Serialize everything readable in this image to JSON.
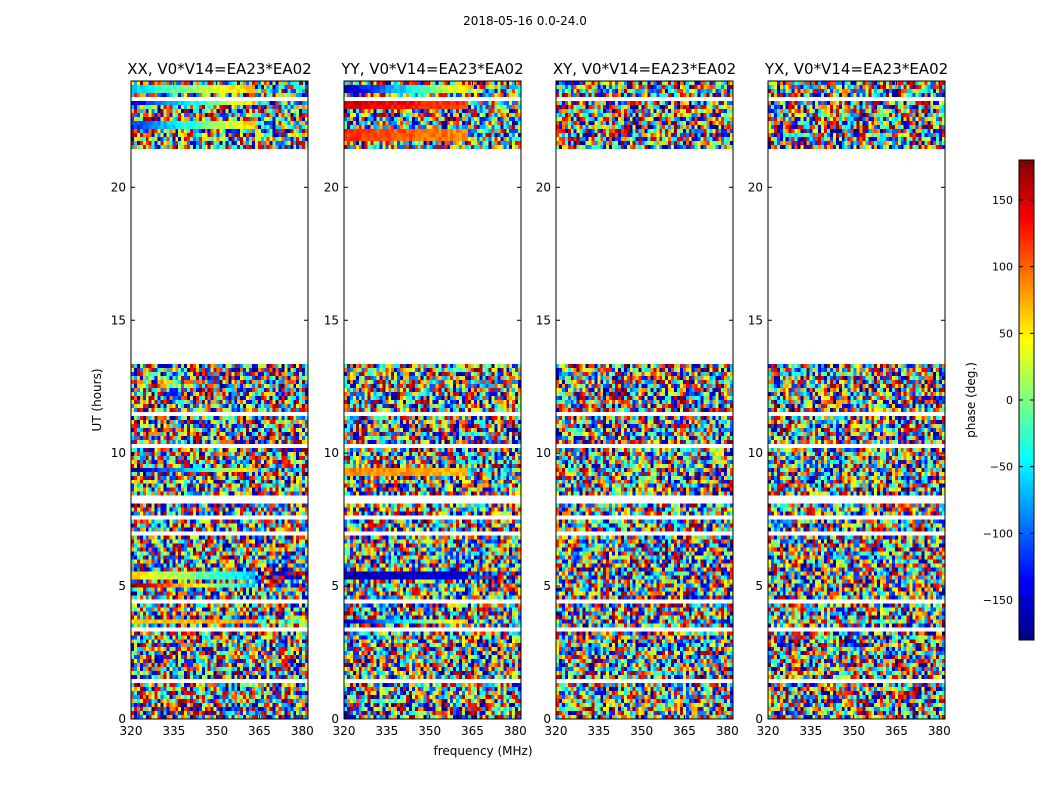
{
  "chart_data": {
    "type": "heatmap",
    "suptitle": "2018-05-16 0.0-24.0",
    "xlabel": "frequency (MHz)",
    "ylabel": "UT (hours)",
    "colorbar": {
      "label": "phase (deg.)",
      "range": [
        -180,
        180
      ],
      "ticks": [
        -150,
        -100,
        -50,
        0,
        50,
        100,
        150
      ],
      "colormap": "jet",
      "colors": [
        "#00007f",
        "#0000ff",
        "#007fff",
        "#00ffff",
        "#7fff7f",
        "#ffff00",
        "#ff7f00",
        "#ff0000",
        "#7f0000"
      ]
    },
    "xlim": [
      320,
      382
    ],
    "xticks": [
      320,
      335,
      350,
      365,
      380
    ],
    "ylim": [
      0,
      24
    ],
    "yticks": [
      0,
      5,
      10,
      15,
      20
    ],
    "flagged_ut_ranges": [
      [
        13.4,
        21.4
      ],
      [
        8.1,
        8.4
      ],
      [
        11.4,
        11.6
      ],
      [
        3.25,
        3.45
      ],
      [
        1.35,
        1.5
      ],
      [
        23.3,
        23.4
      ],
      [
        22.6,
        22.7
      ],
      [
        7.5,
        7.6
      ],
      [
        4.4,
        4.5
      ],
      [
        6.9,
        7.0
      ],
      [
        12.4,
        12.5
      ],
      [
        10.2,
        10.3
      ]
    ],
    "panels": [
      {
        "title": "XX, V0*V14=EA23*EA02",
        "coherent_bands": [
          {
            "ut": [
              23.6,
              23.8
            ],
            "phase_start": -60,
            "phase_end": 130
          },
          {
            "ut": [
              23.1,
              23.3
            ],
            "phase_start": -150,
            "phase_end": 160
          },
          {
            "ut": [
              22.2,
              22.5
            ],
            "phase_start": -120,
            "phase_end": 150
          },
          {
            "ut": [
              9.3,
              9.5
            ],
            "phase_start": -170,
            "phase_end": 170
          },
          {
            "ut": [
              5.3,
              5.6
            ],
            "phase_start": 60,
            "phase_end": -120
          },
          {
            "ut": [
              4.9,
              5.1
            ],
            "phase_start": 170,
            "phase_end": -170
          },
          {
            "ut": [
              3.55,
              3.7
            ],
            "phase_start": 60,
            "phase_end": 90
          }
        ]
      },
      {
        "title": "YY, V0*V14=EA23*EA02",
        "coherent_bands": [
          {
            "ut": [
              23.6,
              23.8
            ],
            "phase_start": -160,
            "phase_end": 150
          },
          {
            "ut": [
              22.9,
              23.2
            ],
            "phase_start": 150,
            "phase_end": 100
          },
          {
            "ut": [
              21.8,
              22.2
            ],
            "phase_start": 120,
            "phase_end": 70
          },
          {
            "ut": [
              9.2,
              9.5
            ],
            "phase_start": 90,
            "phase_end": 60
          },
          {
            "ut": [
              5.2,
              5.5
            ],
            "phase_start": -160,
            "phase_end": -140
          },
          {
            "ut": [
              3.55,
              3.7
            ],
            "phase_start": -160,
            "phase_end": 170
          }
        ]
      },
      {
        "title": "XY, V0*V14=EA23*EA02",
        "coherent_bands": []
      },
      {
        "title": "YX, V0*V14=EA23*EA02",
        "coherent_bands": []
      }
    ]
  }
}
